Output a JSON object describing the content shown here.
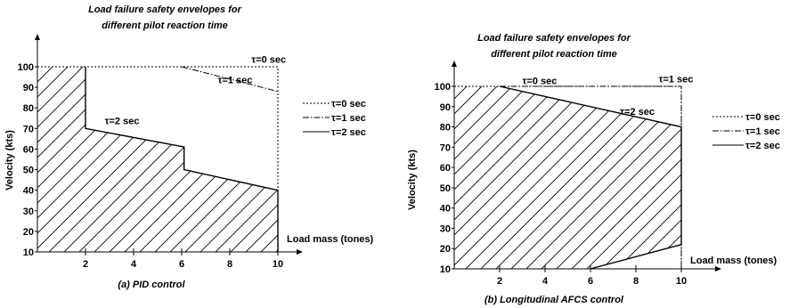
{
  "chart_data": [
    {
      "type": "line",
      "title_lines": [
        "Load failure safety envelopes for",
        "different pilot reaction time"
      ],
      "caption": "(a) PID control",
      "xlabel": "Load mass (tones)",
      "ylabel": "Velocity (kts)",
      "xlim": [
        0,
        10
      ],
      "ylim": [
        10,
        100
      ],
      "xticks": [
        2,
        4,
        6,
        8,
        10
      ],
      "yticks": [
        10,
        20,
        30,
        40,
        50,
        60,
        70,
        80,
        90,
        100
      ],
      "series": [
        {
          "name": "τ=0 sec",
          "style": "dotted",
          "points": [
            [
              0,
              100
            ],
            [
              10,
              100
            ],
            [
              10,
              10
            ]
          ]
        },
        {
          "name": "τ=1 sec",
          "style": "dashdot",
          "points": [
            [
              6,
              100
            ],
            [
              10,
              88
            ]
          ]
        },
        {
          "name": "τ=2 sec",
          "style": "solid",
          "points": [
            [
              2,
              100
            ],
            [
              2,
              70
            ],
            [
              6.1,
              61
            ],
            [
              6.1,
              50
            ],
            [
              10,
              40
            ],
            [
              10,
              10
            ]
          ]
        }
      ],
      "annotations": [
        {
          "text": "τ=0 sec",
          "x": 8.9,
          "y": 102
        },
        {
          "text": "τ=1 sec",
          "x": 7.5,
          "y": 92
        },
        {
          "text": "τ=2 sec",
          "x": 2.8,
          "y": 72
        }
      ],
      "shaded_region": "hatched area under τ=2 sec envelope",
      "legend": "right"
    },
    {
      "type": "line",
      "title_lines": [
        "Load failure safety envelopes for",
        "different pilot reaction time"
      ],
      "caption": "(b) Longitudinal AFCS control",
      "xlabel": "Load mass (tones)",
      "ylabel": "Velocity (kts)",
      "xlim": [
        0,
        10
      ],
      "ylim": [
        10,
        100
      ],
      "xticks": [
        2,
        4,
        6,
        8,
        10
      ],
      "yticks": [
        10,
        20,
        30,
        40,
        50,
        60,
        70,
        80,
        90,
        100
      ],
      "series": [
        {
          "name": "τ=0 sec",
          "style": "dotted",
          "points": [
            [
              0,
              100
            ],
            [
              10,
              100
            ],
            [
              10,
              10
            ]
          ]
        },
        {
          "name": "τ=1 sec",
          "style": "dashdot",
          "points": [
            [
              2,
              100
            ],
            [
              10,
              100
            ],
            [
              10,
              10
            ]
          ]
        },
        {
          "name": "τ=2 sec",
          "style": "solid",
          "points": [
            [
              2,
              100
            ],
            [
              10,
              80
            ],
            [
              10,
              22
            ],
            [
              6,
              10
            ]
          ]
        }
      ],
      "annotations": [
        {
          "text": "τ=0 sec",
          "x": 3.0,
          "y": 101
        },
        {
          "text": "τ=1 sec",
          "x": 9.0,
          "y": 102
        },
        {
          "text": "τ=2 sec",
          "x": 7.3,
          "y": 86
        }
      ],
      "shaded_region": "hatched area under τ=2 sec envelope",
      "legend": "right"
    }
  ]
}
